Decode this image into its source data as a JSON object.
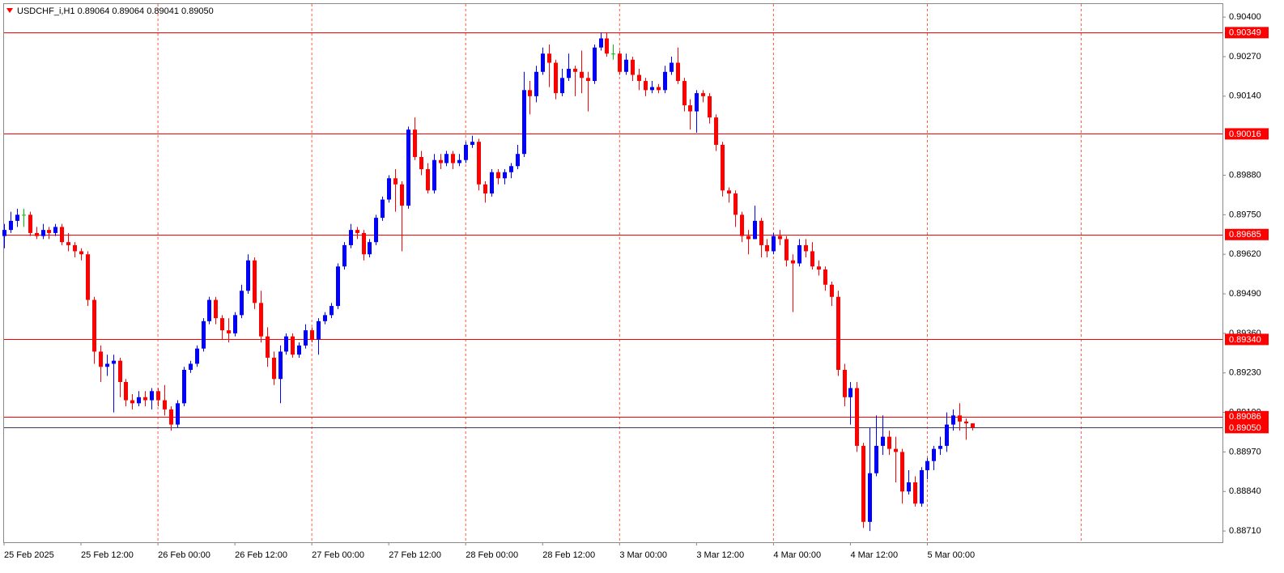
{
  "chart_data": {
    "type": "candlestick",
    "title": "USDCHF_i,H1  0.89064 0.89064 0.89041 0.89050",
    "categories": [
      "25 Feb 2025",
      null,
      null,
      null,
      null,
      null,
      null,
      null,
      null,
      null,
      null,
      null,
      "25 Feb 12:00",
      null,
      null,
      null,
      null,
      null,
      null,
      null,
      null,
      null,
      null,
      null,
      "26 Feb 00:00",
      null,
      null,
      null,
      null,
      null,
      null,
      null,
      null,
      null,
      null,
      null,
      "26 Feb 12:00",
      null,
      null,
      null,
      null,
      null,
      null,
      null,
      null,
      null,
      null,
      null,
      "27 Feb 00:00",
      null,
      null,
      null,
      null,
      null,
      null,
      null,
      null,
      null,
      null,
      null,
      "27 Feb 12:00",
      null,
      null,
      null,
      null,
      null,
      null,
      null,
      null,
      null,
      null,
      null,
      "28 Feb 00:00",
      null,
      null,
      null,
      null,
      null,
      null,
      null,
      null,
      null,
      null,
      null,
      "28 Feb 12:00",
      null,
      null,
      null,
      null,
      null,
      null,
      null,
      null,
      null,
      null,
      null,
      "3 Mar 00:00",
      null,
      null,
      null,
      null,
      null,
      null,
      null,
      null,
      null,
      null,
      null,
      "3 Mar 12:00",
      null,
      null,
      null,
      null,
      null,
      null,
      null,
      null,
      null,
      null,
      null,
      "4 Mar 00:00",
      null,
      null,
      null,
      null,
      null,
      null,
      null,
      null,
      null,
      null,
      null,
      "4 Mar 12:00",
      null,
      null,
      null,
      null,
      null,
      null,
      null,
      null,
      null,
      null,
      null,
      "5 Mar 00:00",
      null,
      null,
      null,
      null,
      null,
      null,
      null
    ],
    "open": [
      0.8968,
      0.897,
      0.8973,
      0.8975,
      0.8975,
      0.8969,
      0.8968,
      0.897,
      0.8969,
      0.8971,
      0.8966,
      0.8965,
      0.8963,
      0.8962,
      0.8947,
      0.893,
      0.8925,
      0.8926,
      0.8927,
      0.892,
      0.8914,
      0.8913,
      0.8915,
      0.8914,
      0.8917,
      0.8914,
      0.8911,
      0.8906,
      0.8913,
      0.8924,
      0.8926,
      0.8931,
      0.894,
      0.8947,
      0.8941,
      0.8937,
      0.8936,
      0.8942,
      0.895,
      0.896,
      0.8946,
      0.8935,
      0.8928,
      0.8921,
      0.893,
      0.8935,
      0.8929,
      0.8932,
      0.8937,
      0.8934,
      0.894,
      0.8942,
      0.8945,
      0.8958,
      0.8965,
      0.897,
      0.8969,
      0.8962,
      0.8966,
      0.8974,
      0.898,
      0.8987,
      0.8985,
      0.8978,
      0.9003,
      0.8994,
      0.899,
      0.8983,
      0.8993,
      0.8992,
      0.8995,
      0.8992,
      0.8993,
      0.8998,
      0.8999,
      0.8985,
      0.8982,
      0.8989,
      0.8987,
      0.8989,
      0.8991,
      0.8995,
      0.9016,
      0.9014,
      0.9022,
      0.9028,
      0.9025,
      0.9015,
      0.902,
      0.9023,
      0.9022,
      0.902,
      0.9019,
      0.903,
      0.9033,
      0.9028,
      0.9028,
      0.9022,
      0.9026,
      0.9021,
      0.9019,
      0.9016,
      0.9017,
      0.9016,
      0.9022,
      0.9025,
      0.9019,
      0.9011,
      0.9009,
      0.9015,
      0.9014,
      0.9007,
      0.8998,
      0.8983,
      0.8982,
      0.8975,
      0.8968,
      0.8967,
      0.8973,
      0.8965,
      0.8963,
      0.8968,
      0.8967,
      0.896,
      0.8959,
      0.8965,
      0.8963,
      0.8958,
      0.8957,
      0.8952,
      0.8948,
      0.8924,
      0.8915,
      0.8918,
      0.8899,
      0.8874,
      0.889,
      0.8899,
      0.8902,
      0.8898,
      0.8897,
      0.8884,
      0.8887,
      0.888,
      0.8891,
      0.8894,
      0.8898,
      0.8899,
      0.8906,
      0.8909,
      0.8907,
      0.89064
    ],
    "high": [
      0.8972,
      0.8976,
      0.8977,
      0.8977,
      0.8976,
      0.8971,
      0.8972,
      0.8971,
      0.8972,
      0.8972,
      0.8969,
      0.8966,
      0.8964,
      0.8963,
      0.8948,
      0.8932,
      0.8929,
      0.8929,
      0.8928,
      0.8921,
      0.8916,
      0.8917,
      0.8917,
      0.8918,
      0.8918,
      0.8919,
      0.8912,
      0.8914,
      0.8925,
      0.8927,
      0.8932,
      0.8941,
      0.8948,
      0.8948,
      0.8942,
      0.8941,
      0.8943,
      0.8952,
      0.8962,
      0.8961,
      0.895,
      0.8938,
      0.893,
      0.8932,
      0.8936,
      0.8936,
      0.8933,
      0.8939,
      0.8938,
      0.8941,
      0.8943,
      0.8946,
      0.8959,
      0.8966,
      0.8972,
      0.8971,
      0.897,
      0.8967,
      0.8975,
      0.8981,
      0.8988,
      0.899,
      0.8986,
      0.9004,
      0.9007,
      0.8996,
      0.8992,
      0.8995,
      0.8995,
      0.8996,
      0.8996,
      0.8995,
      0.8999,
      0.9001,
      0.9,
      0.8986,
      0.899,
      0.899,
      0.899,
      0.8992,
      0.8998,
      0.9022,
      0.9019,
      0.9024,
      0.903,
      0.9031,
      0.9026,
      0.9023,
      0.9028,
      0.9024,
      0.9029,
      0.9022,
      0.9031,
      0.9035,
      0.9035,
      0.9031,
      0.9029,
      0.9028,
      0.9027,
      0.9023,
      0.902,
      0.9019,
      0.9018,
      0.9024,
      0.9027,
      0.903,
      0.902,
      0.9013,
      0.9016,
      0.9016,
      0.9015,
      0.9008,
      0.8999,
      0.8984,
      0.8983,
      0.8976,
      0.897,
      0.8978,
      0.8974,
      0.8967,
      0.8969,
      0.897,
      0.8968,
      0.8962,
      0.8967,
      0.8967,
      0.8966,
      0.896,
      0.8958,
      0.8953,
      0.895,
      0.8926,
      0.892,
      0.892,
      0.89,
      0.8905,
      0.8909,
      0.8909,
      0.8904,
      0.8902,
      0.8898,
      0.8891,
      0.8889,
      0.8892,
      0.8895,
      0.8899,
      0.8902,
      0.891,
      0.8911,
      0.8913,
      0.8908,
      0.89064
    ],
    "low": [
      0.8964,
      0.8969,
      0.8971,
      0.8971,
      0.8968,
      0.8967,
      0.8967,
      0.8967,
      0.8968,
      0.8965,
      0.8963,
      0.8961,
      0.896,
      0.8945,
      0.8926,
      0.892,
      0.8922,
      0.891,
      0.8915,
      0.8912,
      0.8911,
      0.8912,
      0.8912,
      0.8911,
      0.8912,
      0.8909,
      0.8904,
      0.8905,
      0.8912,
      0.8923,
      0.8925,
      0.893,
      0.8939,
      0.8939,
      0.8934,
      0.8933,
      0.8935,
      0.8941,
      0.8949,
      0.8944,
      0.8933,
      0.8925,
      0.8919,
      0.8913,
      0.8929,
      0.8928,
      0.8928,
      0.8931,
      0.8933,
      0.8929,
      0.8939,
      0.8941,
      0.8944,
      0.8957,
      0.8964,
      0.8967,
      0.896,
      0.8961,
      0.8965,
      0.8973,
      0.8979,
      0.8976,
      0.8963,
      0.8977,
      0.8993,
      0.8988,
      0.8982,
      0.8982,
      0.899,
      0.8991,
      0.899,
      0.8991,
      0.8992,
      0.8997,
      0.8983,
      0.8979,
      0.8981,
      0.8985,
      0.8985,
      0.8987,
      0.899,
      0.8994,
      0.9008,
      0.9012,
      0.9021,
      0.9017,
      0.9013,
      0.9014,
      0.9019,
      0.9014,
      0.9015,
      0.9009,
      0.9018,
      0.9029,
      0.9027,
      0.9026,
      0.9021,
      0.9021,
      0.9019,
      0.9016,
      0.9014,
      0.9015,
      0.9015,
      0.9015,
      0.9021,
      0.9018,
      0.9009,
      0.9003,
      0.9002,
      0.9012,
      0.9005,
      0.8996,
      0.8981,
      0.8979,
      0.8971,
      0.8966,
      0.8962,
      0.8967,
      0.8961,
      0.8961,
      0.8962,
      0.8965,
      0.8958,
      0.8943,
      0.8958,
      0.8961,
      0.8957,
      0.8955,
      0.895,
      0.8945,
      0.8922,
      0.8912,
      0.8906,
      0.8897,
      0.8872,
      0.8871,
      0.8889,
      0.8896,
      0.8896,
      0.8887,
      0.888,
      0.8883,
      0.8879,
      0.8879,
      0.8888,
      0.8891,
      0.8896,
      0.8897,
      0.8904,
      0.8904,
      0.8901,
      0.89041
    ],
    "close": [
      0.897,
      0.8973,
      0.8975,
      0.8975,
      0.8969,
      0.8968,
      0.897,
      0.8969,
      0.8971,
      0.8966,
      0.8965,
      0.8963,
      0.8962,
      0.8947,
      0.893,
      0.8925,
      0.8926,
      0.8927,
      0.892,
      0.8914,
      0.8913,
      0.8915,
      0.8914,
      0.8917,
      0.8914,
      0.8911,
      0.8906,
      0.8913,
      0.8924,
      0.8926,
      0.8931,
      0.894,
      0.8947,
      0.8941,
      0.8937,
      0.8936,
      0.8942,
      0.895,
      0.896,
      0.8946,
      0.8935,
      0.8928,
      0.8921,
      0.893,
      0.8935,
      0.8929,
      0.8932,
      0.8937,
      0.8934,
      0.894,
      0.8942,
      0.8945,
      0.8958,
      0.8965,
      0.897,
      0.8969,
      0.8962,
      0.8966,
      0.8974,
      0.898,
      0.8987,
      0.8985,
      0.8978,
      0.9003,
      0.8994,
      0.899,
      0.8983,
      0.8993,
      0.8992,
      0.8995,
      0.8992,
      0.8993,
      0.8998,
      0.8999,
      0.8985,
      0.8982,
      0.8989,
      0.8987,
      0.8989,
      0.8991,
      0.8995,
      0.9016,
      0.9014,
      0.9022,
      0.9028,
      0.9025,
      0.9015,
      0.902,
      0.9023,
      0.9022,
      0.902,
      0.9019,
      0.903,
      0.9033,
      0.9028,
      0.9028,
      0.9022,
      0.9026,
      0.9021,
      0.9019,
      0.9016,
      0.9017,
      0.9016,
      0.9022,
      0.9025,
      0.9019,
      0.9011,
      0.9009,
      0.9015,
      0.9014,
      0.9007,
      0.8998,
      0.8983,
      0.8982,
      0.8975,
      0.8968,
      0.8967,
      0.8973,
      0.8965,
      0.8963,
      0.8968,
      0.8967,
      0.896,
      0.8959,
      0.8965,
      0.8963,
      0.8958,
      0.8957,
      0.8952,
      0.8948,
      0.8924,
      0.8915,
      0.8918,
      0.8899,
      0.8874,
      0.889,
      0.8899,
      0.8902,
      0.8898,
      0.8897,
      0.8884,
      0.8887,
      0.888,
      0.8891,
      0.8894,
      0.8898,
      0.8899,
      0.8906,
      0.8909,
      0.8907,
      0.89064,
      0.8905
    ],
    "up_color": "#0000ff",
    "down_color": "#ff0000",
    "doji_color": "#00c000",
    "ylim": [
      0.88673,
      0.90443
    ],
    "yticks": [
      {
        "value": 0.904,
        "label": "0.90400"
      },
      {
        "value": 0.9027,
        "label": "0.90270"
      },
      {
        "value": 0.9014,
        "label": "0.90140"
      },
      {
        "value": 0.8988,
        "label": "0.89880"
      },
      {
        "value": 0.8975,
        "label": "0.89750"
      },
      {
        "value": 0.8962,
        "label": "0.89620"
      },
      {
        "value": 0.8949,
        "label": "0.89490"
      },
      {
        "value": 0.8936,
        "label": "0.89360"
      },
      {
        "value": 0.8923,
        "label": "0.89230"
      },
      {
        "value": 0.891,
        "label": "0.89100"
      },
      {
        "value": 0.8897,
        "label": "0.88970"
      },
      {
        "value": 0.8884,
        "label": "0.88840"
      },
      {
        "value": 0.8871,
        "label": "0.88710"
      }
    ],
    "levels": [
      {
        "value": 0.90349,
        "label": "0.90349"
      },
      {
        "value": 0.90016,
        "label": "0.90016"
      },
      {
        "value": 0.89685,
        "label": "0.89685"
      },
      {
        "value": 0.8934,
        "label": "0.89340"
      },
      {
        "value": 0.89086,
        "label": "0.89086"
      }
    ],
    "level_color": "#ff0000",
    "bid": {
      "value": 0.8905,
      "label": "0.89050"
    },
    "bid_color": "#3c3c5a",
    "grid": true
  }
}
